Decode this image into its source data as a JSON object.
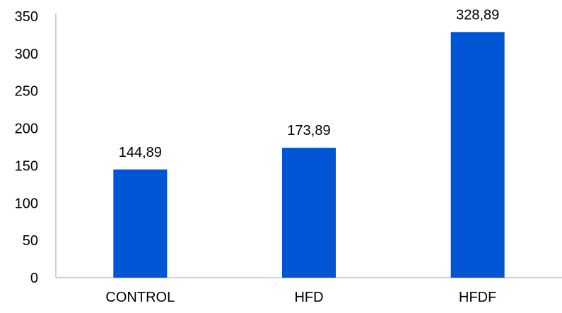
{
  "chart_data": {
    "type": "bar",
    "categories": [
      "CONTROL",
      "HFD",
      "HFDF"
    ],
    "values": [
      144.89,
      173.89,
      328.89
    ],
    "data_labels": [
      "144,89",
      "173,89",
      "328,89"
    ],
    "ylim": [
      0,
      350
    ],
    "yticks": [
      0,
      50,
      100,
      150,
      200,
      250,
      300,
      350
    ],
    "ytick_labels": [
      "0",
      "50",
      "100",
      "150",
      "200",
      "250",
      "300",
      "350"
    ],
    "bar_color": "#0055D4",
    "axis_color": "#A6A6A6",
    "grid": false,
    "legend": false
  }
}
